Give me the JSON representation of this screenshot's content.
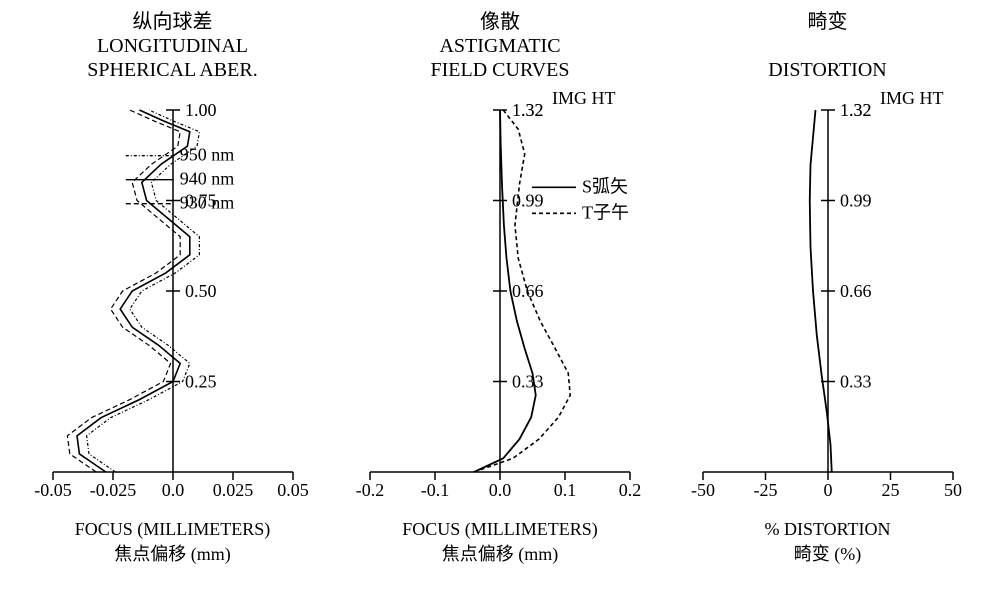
{
  "figure": {
    "background_color": "#ffffff",
    "stroke_color": "#000000",
    "font_family": "Times New Roman, serif",
    "title_fontsize": 20,
    "tick_fontsize": 18,
    "label_fontsize": 18,
    "legend_fontsize": 18
  },
  "panel1": {
    "type": "line",
    "title_cn": "纵向球差",
    "title_en_line1": "LONGITUDINAL",
    "title_en_line2": "SPHERICAL ABER.",
    "y_top_label": "1.00",
    "x_label_en": "FOCUS (MILLIMETERS)",
    "x_label_cn": "焦点偏移 (mm)",
    "xlim": [
      -0.05,
      0.05
    ],
    "ylim": [
      0,
      1.0
    ],
    "xticks": [
      -0.05,
      -0.025,
      0.0,
      0.025,
      0.05
    ],
    "xtick_labels": [
      "-0.05",
      "-0.025",
      "0.0",
      "0.025",
      "0.05"
    ],
    "yticks": [
      0.25,
      0.5,
      0.75,
      1.0
    ],
    "ytick_labels": [
      "0.25",
      "0.50",
      "0.75",
      "1.00"
    ],
    "legend": [
      {
        "label": "950 nm",
        "dash": "3 2 1 2",
        "color": "#000000"
      },
      {
        "label": "940 nm",
        "dash": "",
        "color": "#000000"
      },
      {
        "label": "930 nm",
        "dash": "5 3",
        "color": "#000000"
      }
    ],
    "series": [
      {
        "name": "940",
        "dash": "",
        "color": "#000000",
        "width": 1.6,
        "points": [
          [
            -0.028,
            0.0
          ],
          [
            -0.039,
            0.05
          ],
          [
            -0.04,
            0.1
          ],
          [
            -0.03,
            0.15
          ],
          [
            -0.014,
            0.2
          ],
          [
            0.0,
            0.25
          ],
          [
            0.003,
            0.3
          ],
          [
            -0.006,
            0.35
          ],
          [
            -0.017,
            0.4
          ],
          [
            -0.022,
            0.45
          ],
          [
            -0.017,
            0.5
          ],
          [
            -0.003,
            0.55
          ],
          [
            0.007,
            0.6
          ],
          [
            0.007,
            0.65
          ],
          [
            -0.002,
            0.7
          ],
          [
            -0.011,
            0.75
          ],
          [
            -0.013,
            0.8
          ],
          [
            -0.005,
            0.85
          ],
          [
            0.006,
            0.9
          ],
          [
            0.007,
            0.94
          ],
          [
            -0.004,
            0.97
          ],
          [
            -0.014,
            1.0
          ]
        ]
      },
      {
        "name": "950",
        "dash": "3 2 1 2",
        "color": "#000000",
        "width": 1.2,
        "points": [
          [
            -0.024,
            0.0
          ],
          [
            -0.035,
            0.05
          ],
          [
            -0.036,
            0.1
          ],
          [
            -0.026,
            0.15
          ],
          [
            -0.01,
            0.2
          ],
          [
            0.004,
            0.25
          ],
          [
            0.007,
            0.3
          ],
          [
            -0.002,
            0.35
          ],
          [
            -0.013,
            0.4
          ],
          [
            -0.018,
            0.45
          ],
          [
            -0.013,
            0.5
          ],
          [
            0.001,
            0.55
          ],
          [
            0.011,
            0.6
          ],
          [
            0.011,
            0.65
          ],
          [
            0.002,
            0.7
          ],
          [
            -0.007,
            0.75
          ],
          [
            -0.009,
            0.8
          ],
          [
            -0.001,
            0.85
          ],
          [
            0.01,
            0.9
          ],
          [
            0.011,
            0.94
          ],
          [
            0.0,
            0.97
          ],
          [
            -0.01,
            1.0
          ]
        ]
      },
      {
        "name": "930",
        "dash": "5 3",
        "color": "#000000",
        "width": 1.2,
        "points": [
          [
            -0.032,
            0.0
          ],
          [
            -0.043,
            0.05
          ],
          [
            -0.044,
            0.1
          ],
          [
            -0.034,
            0.15
          ],
          [
            -0.018,
            0.2
          ],
          [
            -0.004,
            0.25
          ],
          [
            -0.001,
            0.3
          ],
          [
            -0.01,
            0.35
          ],
          [
            -0.021,
            0.4
          ],
          [
            -0.026,
            0.45
          ],
          [
            -0.021,
            0.5
          ],
          [
            -0.007,
            0.55
          ],
          [
            0.003,
            0.6
          ],
          [
            0.003,
            0.65
          ],
          [
            -0.006,
            0.7
          ],
          [
            -0.015,
            0.75
          ],
          [
            -0.017,
            0.8
          ],
          [
            -0.009,
            0.85
          ],
          [
            0.002,
            0.9
          ],
          [
            0.003,
            0.94
          ],
          [
            -0.008,
            0.97
          ],
          [
            -0.018,
            1.0
          ]
        ]
      }
    ]
  },
  "panel2": {
    "type": "line",
    "title_cn": "像散",
    "title_en_line1": "ASTIGMATIC",
    "title_en_line2": "FIELD CURVES",
    "y_top_label_prefix": "IMG HT",
    "x_label_en": "FOCUS (MILLIMETERS)",
    "x_label_cn": "焦点偏移 (mm)",
    "xlim": [
      -0.2,
      0.2
    ],
    "ylim": [
      0,
      1.32
    ],
    "xticks": [
      -0.2,
      -0.1,
      0.0,
      0.1,
      0.2
    ],
    "xtick_labels": [
      "-0.2",
      "-0.1",
      "0.0",
      "0.1",
      "0.2"
    ],
    "yticks": [
      0.33,
      0.66,
      0.99,
      1.32
    ],
    "ytick_labels": [
      "0.33",
      "0.66",
      "0.99",
      "1.32"
    ],
    "legend": [
      {
        "label": "S弧矢",
        "dash": "",
        "color": "#000000"
      },
      {
        "label": "T子午",
        "dash": "4 3",
        "color": "#000000"
      }
    ],
    "series": [
      {
        "name": "S",
        "dash": "",
        "color": "#000000",
        "width": 1.8,
        "points": [
          [
            -0.04,
            0.0
          ],
          [
            0.005,
            0.05
          ],
          [
            0.03,
            0.12
          ],
          [
            0.048,
            0.2
          ],
          [
            0.055,
            0.28
          ],
          [
            0.05,
            0.36
          ],
          [
            0.038,
            0.45
          ],
          [
            0.026,
            0.55
          ],
          [
            0.016,
            0.66
          ],
          [
            0.01,
            0.78
          ],
          [
            0.006,
            0.9
          ],
          [
            0.003,
            1.05
          ],
          [
            0.001,
            1.2
          ],
          [
            0.0,
            1.32
          ]
        ]
      },
      {
        "name": "T",
        "dash": "4 3",
        "color": "#000000",
        "width": 1.6,
        "points": [
          [
            -0.04,
            0.0
          ],
          [
            0.02,
            0.05
          ],
          [
            0.06,
            0.12
          ],
          [
            0.09,
            0.2
          ],
          [
            0.108,
            0.28
          ],
          [
            0.105,
            0.36
          ],
          [
            0.085,
            0.45
          ],
          [
            0.062,
            0.55
          ],
          [
            0.042,
            0.66
          ],
          [
            0.028,
            0.78
          ],
          [
            0.023,
            0.9
          ],
          [
            0.03,
            1.05
          ],
          [
            0.038,
            1.16
          ],
          [
            0.028,
            1.25
          ],
          [
            0.005,
            1.32
          ]
        ]
      }
    ]
  },
  "panel3": {
    "type": "line",
    "title_cn": "畸变",
    "title_en_line1": "DISTORTION",
    "title_en_line2": "",
    "y_top_label_prefix": "IMG HT",
    "x_label_en": "%  DISTORTION",
    "x_label_cn": "畸变 (%)",
    "xlim": [
      -50,
      50
    ],
    "ylim": [
      0,
      1.32
    ],
    "xticks": [
      -50,
      -25,
      0,
      25,
      50
    ],
    "xtick_labels": [
      "-50",
      "-25",
      "0",
      "25",
      "50"
    ],
    "yticks": [
      0.33,
      0.66,
      0.99,
      1.32
    ],
    "ytick_labels": [
      "0.33",
      "0.66",
      "0.99",
      "1.32"
    ],
    "series": [
      {
        "name": "dist",
        "dash": "",
        "color": "#000000",
        "width": 1.8,
        "points": [
          [
            1.5,
            0.0
          ],
          [
            1.0,
            0.1
          ],
          [
            -0.5,
            0.22
          ],
          [
            -2.5,
            0.35
          ],
          [
            -4.5,
            0.5
          ],
          [
            -6.0,
            0.66
          ],
          [
            -7.0,
            0.82
          ],
          [
            -7.3,
            0.99
          ],
          [
            -7.0,
            1.12
          ],
          [
            -6.0,
            1.22
          ],
          [
            -5.0,
            1.32
          ]
        ]
      }
    ]
  }
}
